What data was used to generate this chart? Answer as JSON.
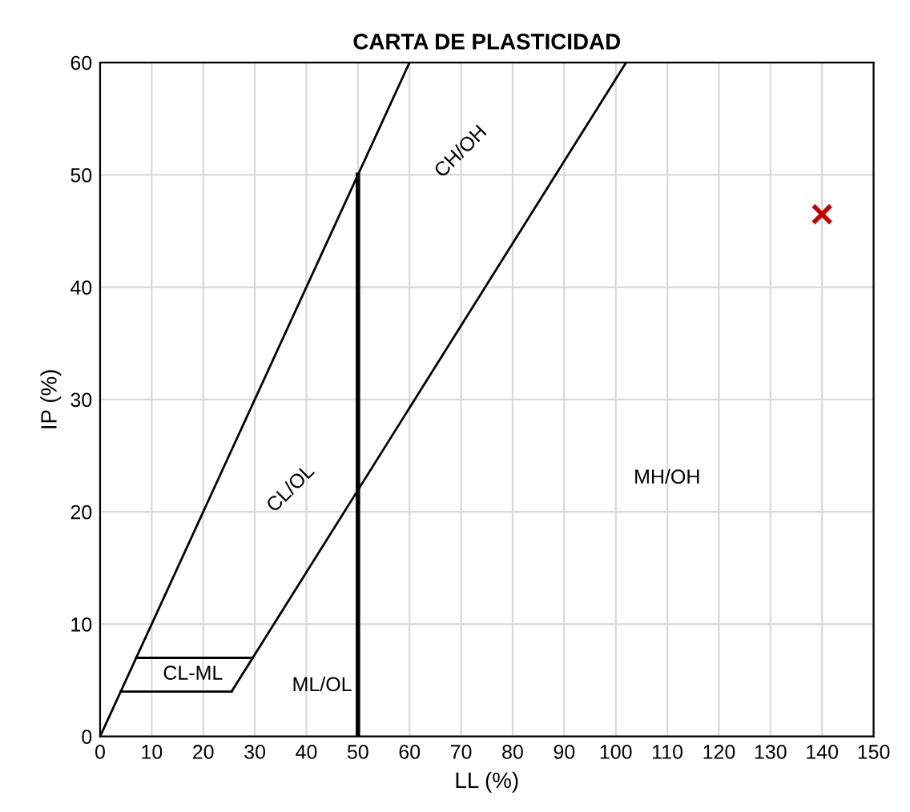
{
  "chart_data": {
    "type": "line",
    "title": "CARTA DE PLASTICIDAD",
    "xlabel": "LL (%)",
    "ylabel": "IP (%)",
    "series": [
      {
        "color": "#000000",
        "x": [
          0,
          60
        ],
        "values": [
          0,
          60
        ],
        "marker": "none"
      },
      {
        "color": "#000000",
        "x": [
          25.5,
          102
        ],
        "values": [
          4,
          60
        ],
        "marker": "none"
      },
      {
        "color": "#000000",
        "x": [
          4,
          25.5
        ],
        "values": [
          4,
          4
        ],
        "marker": "none"
      },
      {
        "color": "#000000",
        "x": [
          7,
          29.6
        ],
        "values": [
          7,
          7
        ],
        "marker": "none"
      },
      {
        "color": "#000000",
        "x": [
          50,
          50
        ],
        "values": [
          0,
          50
        ],
        "marker": "none"
      },
      {
        "type": "scatter",
        "color": "#c00000",
        "x": [
          140
        ],
        "values": [
          46.5
        ],
        "marker": "cross"
      }
    ],
    "annotations": [
      "CH/OH",
      "CL/OL",
      "MH/OH",
      "CL-ML",
      "ML/OL"
    ],
    "xlim": [
      0,
      150
    ],
    "ylim": [
      0,
      60
    ],
    "xticks": [
      0,
      10,
      20,
      30,
      40,
      50,
      60,
      70,
      80,
      90,
      100,
      110,
      120,
      130,
      140,
      150
    ],
    "yticks": [
      0,
      10,
      20,
      30,
      40,
      50,
      60
    ],
    "grid": true
  }
}
